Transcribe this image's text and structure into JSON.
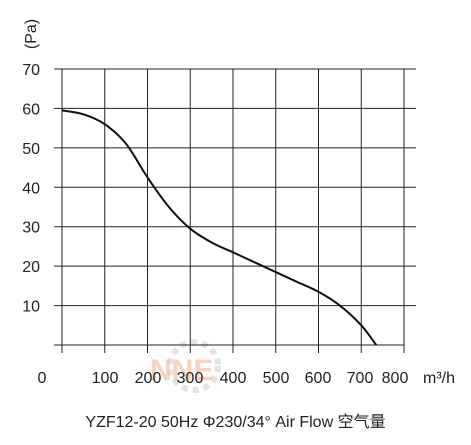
{
  "chart_data": {
    "type": "line",
    "title": "",
    "caption": "YZF12-20 50Hz Φ230/34° Air Flow 空气量",
    "xlabel": "m³/h",
    "ylabel": "(Pa)",
    "xlim": [
      0,
      800
    ],
    "ylim": [
      0,
      70
    ],
    "x_ticks": [
      0,
      100,
      200,
      300,
      400,
      500,
      600,
      700,
      800
    ],
    "y_ticks": [
      10,
      20,
      30,
      40,
      50,
      60,
      70
    ],
    "x_tick_labels": [
      "0",
      "100",
      "200",
      "300",
      "400",
      "500",
      "600",
      "700",
      "800"
    ],
    "y_tick_labels": [
      "10",
      "20",
      "30",
      "40",
      "50",
      "60",
      "70"
    ],
    "grid": true,
    "series": [
      {
        "x": [
          0,
          50,
          100,
          150,
          200,
          250,
          300,
          350,
          400,
          450,
          500,
          550,
          600,
          650,
          700,
          735
        ],
        "y": [
          59.5,
          58.5,
          56,
          51,
          42.5,
          35,
          29.5,
          26,
          23.5,
          21,
          18.5,
          16,
          13.5,
          10,
          5,
          0
        ]
      }
    ]
  },
  "watermark": {
    "text": "NNE"
  },
  "colors": {
    "line": "#111111",
    "grid": "#222222",
    "watermark": "#f3b28a"
  }
}
